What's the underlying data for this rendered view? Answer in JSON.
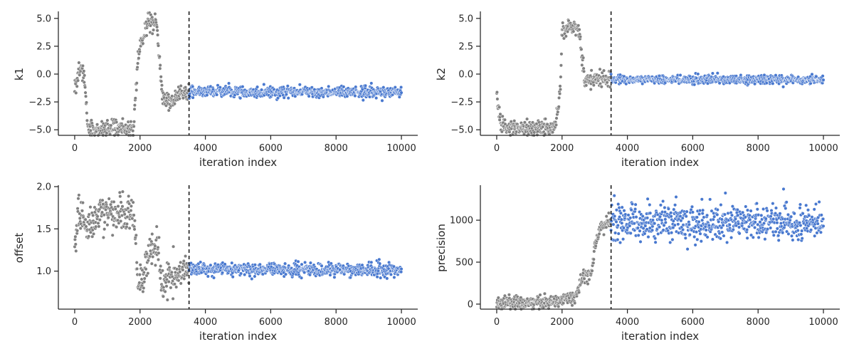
{
  "colors": {
    "burnin": "#808080",
    "sampled": "#4878cf",
    "edge": "#ffffff",
    "axis": "#262626",
    "divider": "#111111"
  },
  "chart_data": [
    {
      "type": "scatter",
      "title": "",
      "xlabel": "iteration index",
      "ylabel": "k1",
      "xlim": [
        -500,
        10500
      ],
      "ylim": [
        -5.5,
        5.5
      ],
      "xticks": [
        0,
        2000,
        4000,
        6000,
        8000,
        10000
      ],
      "yticks": [
        -5.0,
        -2.5,
        0.0,
        2.5,
        5.0
      ],
      "ytick_labels": [
        "−5.0",
        "−2.5",
        "0.0",
        "2.5",
        "5.0"
      ],
      "divider_x": 3500,
      "grid": false,
      "burnin_trace": [
        [
          0,
          -1.0
        ],
        [
          100,
          0.0
        ],
        [
          200,
          0.6
        ],
        [
          300,
          -0.3
        ],
        [
          400,
          -4.9
        ],
        [
          700,
          -5.0
        ],
        [
          1200,
          -4.9
        ],
        [
          1800,
          -4.8
        ],
        [
          1950,
          1.8
        ],
        [
          2200,
          4.5
        ],
        [
          2500,
          4.7
        ],
        [
          2700,
          -2.2
        ],
        [
          3000,
          -2.6
        ],
        [
          3200,
          -1.5
        ],
        [
          3500,
          -1.6
        ]
      ],
      "burnin_jitter": 0.4,
      "sampled_trace": [
        [
          3500,
          -1.6
        ],
        [
          10000,
          -1.6
        ]
      ],
      "sampled_jitter": 0.25
    },
    {
      "type": "scatter",
      "title": "",
      "xlabel": "iteration index",
      "ylabel": "k2",
      "xlim": [
        -500,
        10500
      ],
      "ylim": [
        -5.5,
        5.5
      ],
      "xticks": [
        0,
        2000,
        4000,
        6000,
        8000,
        10000
      ],
      "yticks": [
        -5.0,
        -2.5,
        0.0,
        2.5,
        5.0
      ],
      "ytick_labels": [
        "−5.0",
        "−2.5",
        "0.0",
        "2.5",
        "5.0"
      ],
      "divider_x": 3500,
      "grid": false,
      "burnin_trace": [
        [
          0,
          -2.0
        ],
        [
          150,
          -4.7
        ],
        [
          400,
          -4.8
        ],
        [
          800,
          -5.0
        ],
        [
          1300,
          -4.9
        ],
        [
          1800,
          -4.8
        ],
        [
          1950,
          -1.0
        ],
        [
          2000,
          4.2
        ],
        [
          2300,
          4.2
        ],
        [
          2500,
          4.0
        ],
        [
          2700,
          -0.6
        ],
        [
          3000,
          -0.3
        ],
        [
          3500,
          -0.5
        ]
      ],
      "burnin_jitter": 0.35,
      "sampled_trace": [
        [
          3500,
          -0.5
        ],
        [
          10000,
          -0.5
        ]
      ],
      "sampled_jitter": 0.2
    },
    {
      "type": "scatter",
      "title": "",
      "xlabel": "iteration index",
      "ylabel": "offset",
      "xlim": [
        -500,
        10500
      ],
      "ylim": [
        0.55,
        2.0
      ],
      "xticks": [
        0,
        2000,
        4000,
        6000,
        8000,
        10000
      ],
      "yticks": [
        1.0,
        1.5,
        2.0
      ],
      "ytick_labels": [
        "1.0",
        "1.5",
        "2.0"
      ],
      "divider_x": 3500,
      "grid": false,
      "burnin_trace": [
        [
          0,
          1.2
        ],
        [
          100,
          1.75
        ],
        [
          300,
          1.55
        ],
        [
          500,
          1.55
        ],
        [
          800,
          1.68
        ],
        [
          1200,
          1.68
        ],
        [
          1800,
          1.7
        ],
        [
          1950,
          0.85
        ],
        [
          2100,
          0.9
        ],
        [
          2300,
          1.25
        ],
        [
          2500,
          1.3
        ],
        [
          2700,
          0.85
        ],
        [
          3000,
          0.9
        ],
        [
          3200,
          1.0
        ],
        [
          3500,
          1.0
        ]
      ],
      "burnin_jitter": 0.1,
      "sampled_trace": [
        [
          3500,
          1.02
        ],
        [
          10000,
          1.01
        ]
      ],
      "sampled_jitter": 0.04
    },
    {
      "type": "scatter",
      "title": "",
      "xlabel": "iteration index",
      "ylabel": "precision",
      "xlim": [
        -500,
        10500
      ],
      "ylim": [
        -60,
        1400
      ],
      "xticks": [
        0,
        2000,
        4000,
        6000,
        8000,
        10000
      ],
      "yticks": [
        0,
        500,
        1000
      ],
      "ytick_labels": [
        "0",
        "500",
        "1000"
      ],
      "divider_x": 3500,
      "grid": false,
      "burnin_trace": [
        [
          0,
          5
        ],
        [
          1800,
          30
        ],
        [
          2100,
          60
        ],
        [
          2400,
          80
        ],
        [
          2600,
          300
        ],
        [
          2900,
          350
        ],
        [
          3000,
          700
        ],
        [
          3200,
          900
        ],
        [
          3500,
          980
        ]
      ],
      "burnin_jitter": 40,
      "sampled_trace": [
        [
          3500,
          980
        ],
        [
          10000,
          980
        ]
      ],
      "sampled_jitter": 110
    }
  ]
}
